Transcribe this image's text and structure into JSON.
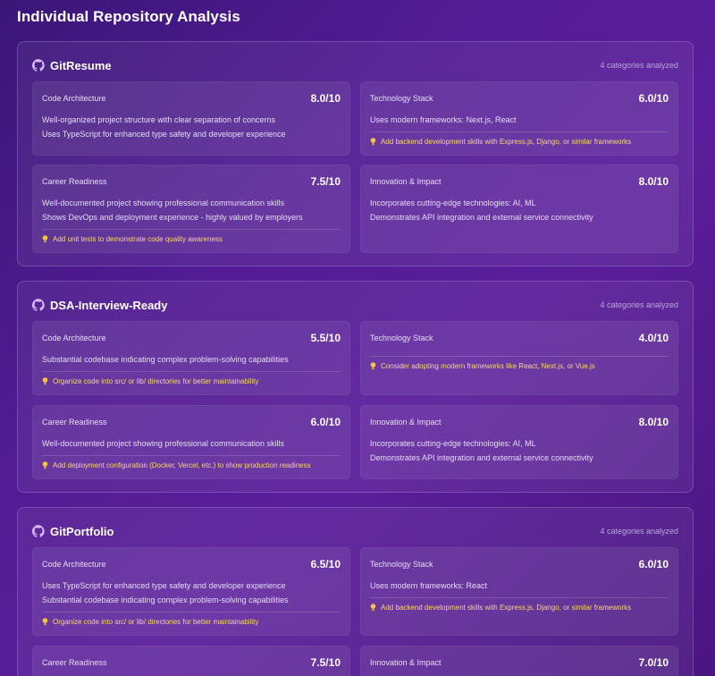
{
  "page": {
    "title": "Individual Repository Analysis"
  },
  "colors": {
    "accent_tip": "#f7d774",
    "github_icon": "#d9b8ff"
  },
  "repos": [
    {
      "name": "GitResume",
      "count_label": "4 categories analyzed",
      "icon": "github-icon",
      "categories": [
        {
          "name": "Code Architecture",
          "score": "8.0/10",
          "lines": [
            "Well-organized project structure with clear separation of concerns",
            "Uses TypeScript for enhanced type safety and developer experience"
          ],
          "tip": ""
        },
        {
          "name": "Technology Stack",
          "score": "6.0/10",
          "lines": [
            "Uses modern frameworks: Next.js, React"
          ],
          "tip": "Add backend development skills with Express.js, Django, or similar frameworks"
        },
        {
          "name": "Career Readiness",
          "score": "7.5/10",
          "lines": [
            "Well-documented project showing professional communication skills",
            "Shows DevOps and deployment experience - highly valued by employers"
          ],
          "tip": "Add unit tests to demonstrate code quality awareness"
        },
        {
          "name": "Innovation & Impact",
          "score": "8.0/10",
          "lines": [
            "Incorporates cutting-edge technologies: AI, ML",
            "Demonstrates API integration and external service connectivity"
          ],
          "tip": ""
        }
      ]
    },
    {
      "name": "DSA-Interview-Ready",
      "count_label": "4 categories analyzed",
      "icon": "github-icon",
      "categories": [
        {
          "name": "Code Architecture",
          "score": "5.5/10",
          "lines": [
            "Substantial codebase indicating complex problem-solving capabilities"
          ],
          "tip": "Organize code into src/ or lib/ directories for better maintainability"
        },
        {
          "name": "Technology Stack",
          "score": "4.0/10",
          "lines": [],
          "tip": "Consider adopting modern frameworks like React, Next.js, or Vue.js"
        },
        {
          "name": "Career Readiness",
          "score": "6.0/10",
          "lines": [
            "Well-documented project showing professional communication skills"
          ],
          "tip": "Add deployment configuration (Docker, Vercel, etc.) to show production readiness"
        },
        {
          "name": "Innovation & Impact",
          "score": "8.0/10",
          "lines": [
            "Incorporates cutting-edge technologies: AI, ML",
            "Demonstrates API integration and external service connectivity"
          ],
          "tip": ""
        }
      ]
    },
    {
      "name": "GitPortfolio",
      "count_label": "4 categories analyzed",
      "icon": "github-icon",
      "categories": [
        {
          "name": "Code Architecture",
          "score": "6.5/10",
          "lines": [
            "Uses TypeScript for enhanced type safety and developer experience",
            "Substantial codebase indicating complex problem-solving capabilities"
          ],
          "tip": "Organize code into src/ or lib/ directories for better maintainability"
        },
        {
          "name": "Technology Stack",
          "score": "6.0/10",
          "lines": [
            "Uses modern frameworks: React"
          ],
          "tip": "Add backend development skills with Express.js, Django, or similar frameworks"
        },
        {
          "name": "Career Readiness",
          "score": "7.5/10",
          "lines": [],
          "tip": ""
        },
        {
          "name": "Innovation & Impact",
          "score": "7.0/10",
          "lines": [],
          "tip": ""
        }
      ]
    }
  ]
}
